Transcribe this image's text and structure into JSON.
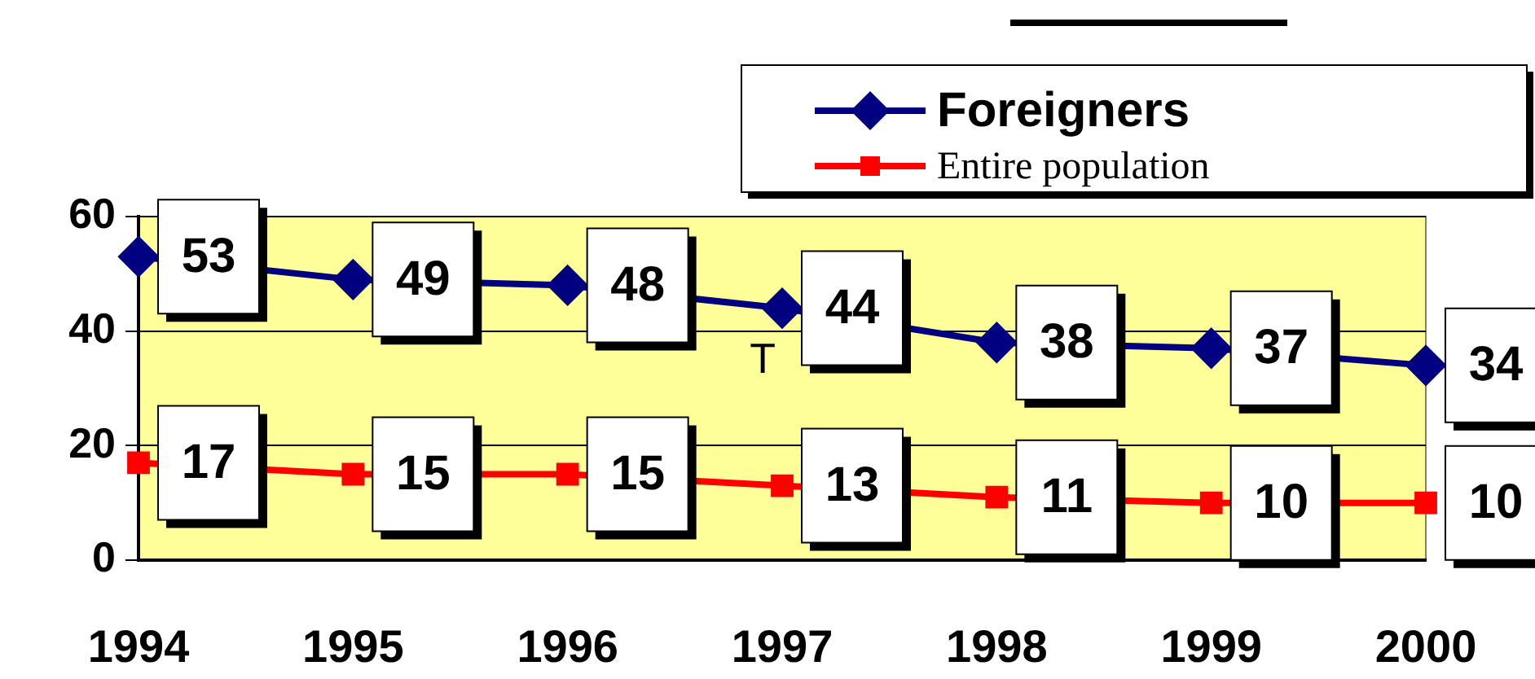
{
  "chart_data": {
    "type": "line",
    "categories": [
      "1994",
      "1995",
      "1996",
      "1997",
      "1998",
      "1999",
      "2000"
    ],
    "series": [
      {
        "name": "Foreigners",
        "color": "#000080",
        "marker": "diamond",
        "values": [
          53,
          49,
          48,
          44,
          38,
          37,
          34
        ]
      },
      {
        "name": "Entire population",
        "color": "#ff0000",
        "marker": "square",
        "values": [
          17,
          15,
          15,
          13,
          11,
          10,
          10
        ]
      }
    ],
    "ylim": [
      0,
      60
    ],
    "yticks": [
      0,
      20,
      40,
      60
    ],
    "grid": "y",
    "legend": "top right",
    "data_labels": true,
    "line_style": "solid",
    "annotations": [
      "T"
    ]
  }
}
